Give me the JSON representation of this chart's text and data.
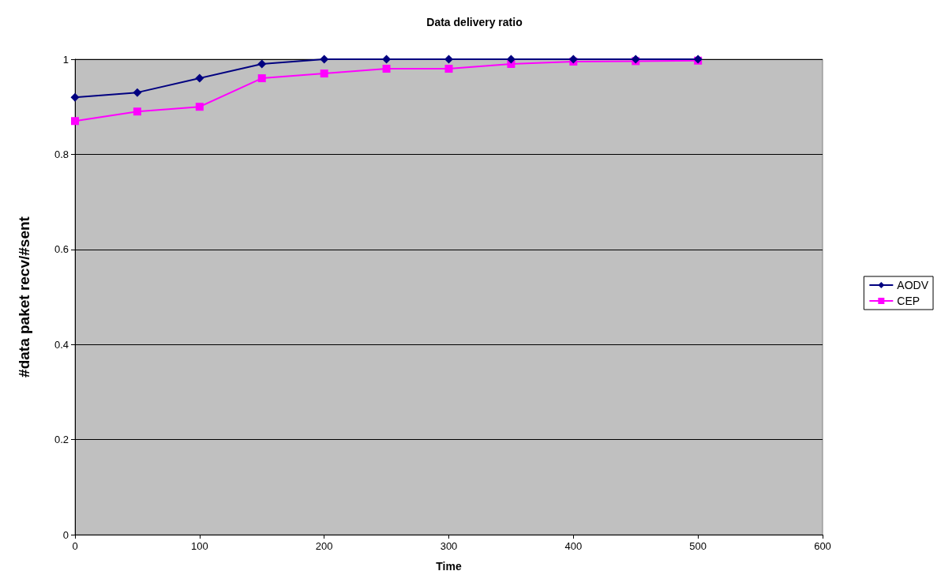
{
  "chart_data": {
    "type": "line",
    "title": "Data delivery ratio",
    "xlabel": "Time",
    "ylabel": "#data paket recv/#sent",
    "x": [
      0,
      50,
      100,
      150,
      200,
      250,
      300,
      350,
      400,
      450,
      500
    ],
    "series": [
      {
        "name": "AODV",
        "color": "#000080",
        "marker": "diamond",
        "values": [
          0.92,
          0.93,
          0.96,
          0.99,
          1,
          1,
          1,
          1,
          1,
          1,
          1
        ]
      },
      {
        "name": "CEP",
        "color": "#ff00ff",
        "marker": "square",
        "values": [
          0.87,
          0.89,
          0.9,
          0.96,
          0.97,
          0.98,
          0.98,
          0.99,
          0.995,
          0.996,
          0.997
        ]
      }
    ],
    "xlim": [
      0,
      600
    ],
    "xticks": [
      0,
      100,
      200,
      300,
      400,
      500,
      600
    ],
    "ylim": [
      0,
      1
    ],
    "yticks": [
      0,
      0.2,
      0.4,
      0.6,
      0.8,
      1
    ],
    "grid": "y",
    "legend": "right",
    "line_style": "solid"
  }
}
